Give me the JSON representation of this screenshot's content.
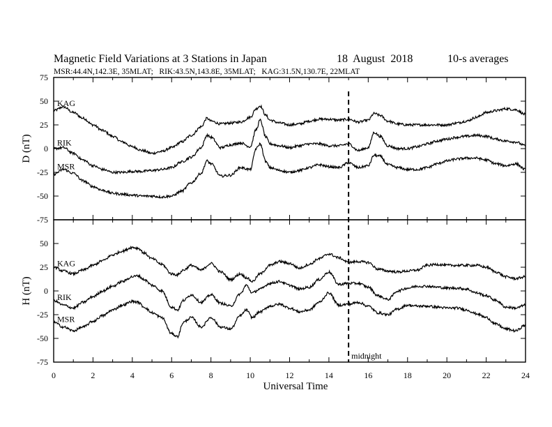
{
  "chart_data": {
    "type": "line",
    "title": "Magnetic Field Variations at 3 Stations in Japan",
    "date": "18  August  2018",
    "averaging": "10-s averages",
    "subtitle": "MSR:44.4N,142.3E, 35MLAT;   RIK:43.5N,143.8E, 35MLAT;   KAG:31.5N,130.7E, 22MLAT",
    "xlabel": "Universal Time",
    "xlim": [
      0,
      24
    ],
    "x_ticks": [
      0,
      2,
      4,
      6,
      8,
      10,
      12,
      14,
      16,
      18,
      20,
      22,
      24
    ],
    "x_tick_labels": [
      "0",
      "2",
      "4",
      "6",
      "8",
      "10",
      "12",
      "14",
      "16",
      "18",
      "20",
      "22",
      "24"
    ],
    "grid": false,
    "legend": "inline station labels near left edge",
    "line_color": "#000000",
    "annotations": [
      {
        "text": "midnight",
        "x": 15,
        "style": "dashed vertical line"
      }
    ],
    "panels": [
      {
        "ylabel": "D (nT)",
        "ylim": [
          -75,
          75
        ],
        "y_ticks": [
          -75,
          -50,
          -25,
          0,
          25,
          50,
          75
        ],
        "y_tick_labels": [
          "-75",
          "-50",
          "-25",
          "0",
          "25",
          "50",
          "75"
        ],
        "series": [
          {
            "name": "KAG",
            "x": [
              0,
              0.5,
              1,
              1.5,
              2,
              2.5,
              3,
              3.5,
              4,
              4.5,
              5,
              5.5,
              6,
              6.5,
              7,
              7.5,
              7.8,
              8,
              8.5,
              9,
              9.5,
              10,
              10.3,
              10.5,
              10.8,
              11,
              11.5,
              12,
              12.5,
              13,
              13.5,
              14,
              14.5,
              15,
              15.5,
              16,
              16.3,
              16.6,
              17,
              17.5,
              18,
              18.5,
              19,
              19.5,
              20,
              20.5,
              21,
              21.5,
              22,
              22.5,
              23,
              23.5,
              24
            ],
            "y": [
              40,
              44,
              38,
              32,
              25,
              19,
              13,
              7,
              2,
              -2,
              -5,
              -3,
              1,
              7,
              14,
              23,
              32,
              29,
              26,
              27,
              28,
              33,
              42,
              45,
              35,
              30,
              27,
              25,
              26,
              29,
              31,
              31,
              30,
              31,
              28,
              30,
              37,
              35,
              29,
              26,
              25,
              25,
              25,
              25,
              25,
              27,
              29,
              33,
              38,
              40,
              42,
              41,
              36
            ]
          },
          {
            "name": "RIK",
            "x": [
              0,
              0.5,
              1,
              1.5,
              2,
              2.5,
              3,
              3.5,
              4,
              4.5,
              5,
              5.5,
              6,
              6.5,
              7,
              7.5,
              7.8,
              8,
              8.5,
              9,
              9.5,
              10,
              10.3,
              10.5,
              10.8,
              11,
              11.5,
              12,
              12.5,
              13,
              13.5,
              14,
              14.5,
              15,
              15.5,
              16,
              16.3,
              16.6,
              17,
              17.5,
              18,
              18.5,
              19,
              19.5,
              20,
              20.5,
              21,
              21.5,
              22,
              22.5,
              23,
              23.5,
              24
            ],
            "y": [
              0,
              1,
              -5,
              -12,
              -18,
              -22,
              -25,
              -25,
              -24,
              -24,
              -23,
              -22,
              -20,
              -14,
              -9,
              1,
              14,
              12,
              1,
              4,
              6,
              2,
              20,
              30,
              12,
              5,
              3,
              1,
              3,
              5,
              5,
              3,
              3,
              5,
              -2,
              1,
              17,
              13,
              3,
              0,
              0,
              2,
              5,
              8,
              10,
              12,
              13,
              14,
              13,
              10,
              8,
              7,
              3
            ]
          },
          {
            "name": "MSR",
            "x": [
              0,
              0.5,
              1,
              1.5,
              2,
              2.5,
              3,
              3.5,
              4,
              4.5,
              5,
              5.5,
              6,
              6.5,
              7,
              7.5,
              7.8,
              8,
              8.5,
              9,
              9.5,
              10,
              10.3,
              10.5,
              10.8,
              11,
              11.5,
              12,
              12.5,
              13,
              13.5,
              14,
              14.5,
              15,
              15.5,
              16,
              16.3,
              16.6,
              17,
              17.5,
              18,
              18.5,
              19,
              19.5,
              20,
              20.5,
              21,
              21.5,
              22,
              22.5,
              23,
              23.5,
              24
            ],
            "y": [
              -27,
              -22,
              -26,
              -34,
              -40,
              -44,
              -47,
              -48,
              -49,
              -50,
              -50,
              -51,
              -50,
              -45,
              -36,
              -26,
              -13,
              -16,
              -29,
              -28,
              -20,
              -22,
              0,
              5,
              -14,
              -20,
              -23,
              -25,
              -23,
              -20,
              -17,
              -19,
              -20,
              -15,
              -20,
              -18,
              -7,
              -8,
              -17,
              -20,
              -22,
              -22,
              -20,
              -16,
              -13,
              -11,
              -10,
              -10,
              -12,
              -16,
              -18,
              -16,
              -22
            ]
          }
        ]
      },
      {
        "ylabel": "H (nT)",
        "ylim": [
          -75,
          75
        ],
        "y_ticks": [
          -75,
          -50,
          -25,
          0,
          25,
          50,
          75
        ],
        "y_tick_labels": [
          "-75",
          "-50",
          "-25",
          "0",
          "25",
          "50",
          "75"
        ],
        "series": [
          {
            "name": "KAG",
            "x": [
              0,
              0.5,
              1,
              1.5,
              2,
              2.5,
              3,
              3.5,
              4,
              4.3,
              4.6,
              5,
              5.5,
              6,
              6.3,
              6.6,
              7,
              7.5,
              8,
              8.5,
              9,
              9.5,
              9.8,
              10.1,
              10.5,
              11,
              11.5,
              12,
              12.5,
              13,
              13.5,
              14,
              14.5,
              15,
              15.5,
              16,
              16.5,
              17,
              17.5,
              18,
              18.5,
              19,
              19.5,
              20,
              20.5,
              21,
              21.5,
              22,
              22.5,
              23,
              23.5,
              24
            ],
            "y": [
              25,
              21,
              18,
              22,
              27,
              32,
              38,
              42,
              46,
              45,
              40,
              34,
              28,
              18,
              17,
              22,
              27,
              22,
              29,
              20,
              12,
              18,
              14,
              10,
              18,
              27,
              31,
              29,
              24,
              28,
              34,
              39,
              35,
              30,
              31,
              30,
              23,
              21,
              20,
              21,
              22,
              27,
              28,
              27,
              27,
              27,
              27,
              25,
              20,
              15,
              13,
              15
            ]
          },
          {
            "name": "RIK",
            "x": [
              0,
              0.5,
              1,
              1.5,
              2,
              2.5,
              3,
              3.5,
              4,
              4.3,
              4.6,
              5,
              5.5,
              6,
              6.3,
              6.6,
              7,
              7.5,
              8,
              8.5,
              9,
              9.5,
              9.8,
              10.1,
              10.5,
              11,
              11.5,
              12,
              12.5,
              13,
              13.5,
              14,
              14.5,
              15,
              15.5,
              16,
              16.5,
              17,
              17.5,
              18,
              18.5,
              19,
              19.5,
              20,
              20.5,
              21,
              21.5,
              22,
              22.5,
              23,
              23.5,
              24
            ],
            "y": [
              -10,
              -15,
              -18,
              -12,
              -6,
              0,
              5,
              10,
              15,
              16,
              12,
              6,
              0,
              -17,
              -20,
              -10,
              -4,
              -12,
              -4,
              -13,
              -16,
              -3,
              6,
              -2,
              2,
              8,
              10,
              6,
              2,
              4,
              12,
              20,
              7,
              8,
              8,
              4,
              -5,
              -9,
              0,
              3,
              5,
              5,
              4,
              3,
              3,
              2,
              -2,
              -5,
              -10,
              -17,
              -18,
              -15
            ]
          },
          {
            "name": "MSR",
            "x": [
              0,
              0.5,
              1,
              1.5,
              2,
              2.5,
              3,
              3.5,
              4,
              4.3,
              4.6,
              5,
              5.5,
              6,
              6.3,
              6.6,
              7,
              7.5,
              8,
              8.5,
              9,
              9.5,
              9.8,
              10.1,
              10.5,
              11,
              11.5,
              12,
              12.5,
              13,
              13.5,
              14,
              14.5,
              15,
              15.5,
              16,
              16.5,
              17,
              17.5,
              18,
              18.5,
              19,
              19.5,
              20,
              20.5,
              21,
              21.5,
              22,
              22.5,
              23,
              23.5,
              24
            ],
            "y": [
              -33,
              -38,
              -42,
              -38,
              -32,
              -26,
              -20,
              -15,
              -11,
              -12,
              -17,
              -23,
              -28,
              -45,
              -48,
              -33,
              -28,
              -38,
              -28,
              -38,
              -40,
              -26,
              -20,
              -28,
              -22,
              -16,
              -14,
              -18,
              -22,
              -20,
              -12,
              -2,
              -15,
              -14,
              -12,
              -16,
              -23,
              -25,
              -19,
              -15,
              -16,
              -16,
              -17,
              -18,
              -18,
              -20,
              -24,
              -28,
              -35,
              -40,
              -42,
              -36
            ]
          }
        ]
      }
    ]
  }
}
